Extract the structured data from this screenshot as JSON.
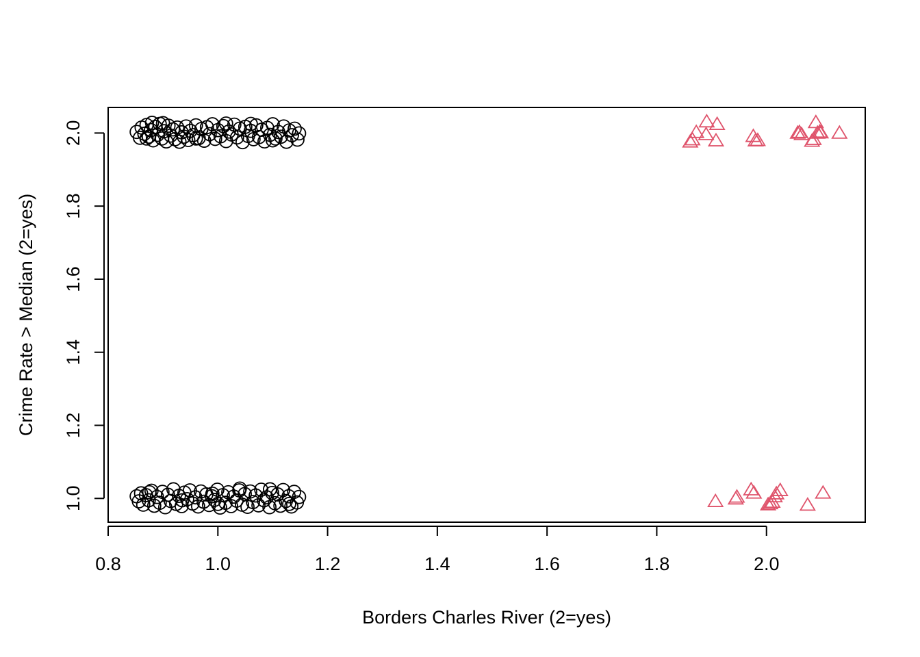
{
  "chart_data": {
    "type": "scatter",
    "title": "",
    "xlabel": "Borders Charles River (2=yes)",
    "ylabel": "Crime Rate > Median (2=yes)",
    "xlim": [
      0.8,
      2.18
    ],
    "ylim": [
      0.935,
      2.07
    ],
    "x_ticks": [
      "0.8",
      "1.0",
      "1.2",
      "1.4",
      "1.6",
      "1.8",
      "2.0"
    ],
    "y_ticks": [
      "1.0",
      "1.2",
      "1.4",
      "1.6",
      "1.8",
      "2.0"
    ],
    "grid": false,
    "legend": false,
    "colors": {
      "circle_series": "#000000",
      "triangle_series": "#DF536B"
    },
    "series": [
      {
        "marker": "circle",
        "color": "#000000",
        "points": [
          [
            0.852,
            2.003
          ],
          [
            0.858,
            1.987
          ],
          [
            0.861,
            2.015
          ],
          [
            0.866,
            1.998
          ],
          [
            0.87,
            2.022
          ],
          [
            0.874,
            1.99
          ],
          [
            0.878,
            2.008
          ],
          [
            0.882,
            1.98
          ],
          [
            0.886,
            2.017
          ],
          [
            0.89,
            1.995
          ],
          [
            0.894,
            2.025
          ],
          [
            0.898,
            1.985
          ],
          [
            0.902,
            2.005
          ],
          [
            0.906,
            1.977
          ],
          [
            0.91,
            2.02
          ],
          [
            0.914,
            1.993
          ],
          [
            0.918,
            2.01
          ],
          [
            0.922,
            1.983
          ],
          [
            0.926,
            2.015
          ],
          [
            0.93,
            1.976
          ],
          [
            0.934,
            2.002
          ],
          [
            0.938,
            1.99
          ],
          [
            0.942,
            2.018
          ],
          [
            0.946,
            1.981
          ],
          [
            0.95,
            2.006
          ],
          [
            0.955,
            1.994
          ],
          [
            0.96,
            2.021
          ],
          [
            0.965,
            1.986
          ],
          [
            0.97,
            2.011
          ],
          [
            0.975,
            1.979
          ],
          [
            0.98,
            2.016
          ],
          [
            0.985,
            1.997
          ],
          [
            0.99,
            2.024
          ],
          [
            0.995,
            1.984
          ],
          [
            1.0,
            2.008
          ],
          [
            1.005,
            1.991
          ],
          [
            1.01,
            2.019
          ],
          [
            1.015,
            1.978
          ],
          [
            1.02,
            2.004
          ],
          [
            1.025,
            1.996
          ],
          [
            1.03,
            2.023
          ],
          [
            1.035,
            1.988
          ],
          [
            1.04,
            2.012
          ],
          [
            1.045,
            1.975
          ],
          [
            1.05,
            2.017
          ],
          [
            1.055,
            1.992
          ],
          [
            1.06,
            2.006
          ],
          [
            1.065,
            1.983
          ],
          [
            1.07,
            2.021
          ],
          [
            1.075,
            1.989
          ],
          [
            1.08,
            2.009
          ],
          [
            1.085,
            1.977
          ],
          [
            1.09,
            2.014
          ],
          [
            1.095,
            1.995
          ],
          [
            1.1,
            2.024
          ],
          [
            1.105,
            1.985
          ],
          [
            1.11,
            2.003
          ],
          [
            1.115,
            1.99
          ],
          [
            1.12,
            2.018
          ],
          [
            1.125,
            1.976
          ],
          [
            1.13,
            2.007
          ],
          [
            1.135,
            1.994
          ],
          [
            1.14,
            2.012
          ],
          [
            1.145,
            1.982
          ],
          [
            1.148,
            1.999
          ],
          [
            0.88,
            2.028
          ],
          [
            0.9,
            2.027
          ],
          [
            0.96,
            1.985
          ],
          [
            1.015,
            2.026
          ],
          [
            1.06,
            2.025
          ],
          [
            1.1,
            1.98
          ],
          [
            0.87,
            1.985
          ],
          [
            0.852,
            1.006
          ],
          [
            0.856,
            0.992
          ],
          [
            0.86,
            1.014
          ],
          [
            0.864,
            0.983
          ],
          [
            0.869,
            1.009
          ],
          [
            0.874,
            0.995
          ],
          [
            0.879,
            1.021
          ],
          [
            0.884,
            0.98
          ],
          [
            0.889,
            1.004
          ],
          [
            0.894,
            0.988
          ],
          [
            0.899,
            1.018
          ],
          [
            0.904,
            0.976
          ],
          [
            0.909,
            1.01
          ],
          [
            0.914,
            0.993
          ],
          [
            0.919,
            1.025
          ],
          [
            0.924,
            0.985
          ],
          [
            0.929,
            1.007
          ],
          [
            0.934,
            0.979
          ],
          [
            0.939,
            1.016
          ],
          [
            0.944,
            0.998
          ],
          [
            0.949,
            1.022
          ],
          [
            0.954,
            0.986
          ],
          [
            0.959,
            1.003
          ],
          [
            0.964,
            0.978
          ],
          [
            0.969,
            1.019
          ],
          [
            0.974,
            0.991
          ],
          [
            0.979,
            1.011
          ],
          [
            0.984,
            0.982
          ],
          [
            0.989,
            1.006
          ],
          [
            0.994,
            0.996
          ],
          [
            0.999,
            1.024
          ],
          [
            1.004,
            0.975
          ],
          [
            1.009,
            1.009
          ],
          [
            1.014,
            0.988
          ],
          [
            1.019,
            1.017
          ],
          [
            1.024,
            0.979
          ],
          [
            1.029,
            1.005
          ],
          [
            1.034,
            0.994
          ],
          [
            1.039,
            1.022
          ],
          [
            1.044,
            0.983
          ],
          [
            1.049,
            1.012
          ],
          [
            1.054,
            0.977
          ],
          [
            1.059,
            1.019
          ],
          [
            1.064,
            0.99
          ],
          [
            1.069,
            1.008
          ],
          [
            1.074,
            0.981
          ],
          [
            1.079,
            1.024
          ],
          [
            1.084,
            0.995
          ],
          [
            1.089,
            1.003
          ],
          [
            1.094,
            0.976
          ],
          [
            1.099,
            1.015
          ],
          [
            1.104,
            0.987
          ],
          [
            1.109,
            1.011
          ],
          [
            1.114,
            0.98
          ],
          [
            1.119,
            1.023
          ],
          [
            1.124,
            0.993
          ],
          [
            1.129,
            1.006
          ],
          [
            1.134,
            0.978
          ],
          [
            1.139,
            1.018
          ],
          [
            1.144,
            0.989
          ],
          [
            1.148,
            1.004
          ],
          [
            0.875,
            1.017
          ],
          [
            0.935,
            0.995
          ],
          [
            0.99,
            1.013
          ],
          [
            1.04,
            1.027
          ],
          [
            1.095,
            1.025
          ],
          [
            1.13,
            0.985
          ],
          [
            1.0,
            0.985
          ]
        ]
      },
      {
        "marker": "triangle",
        "color": "#DF536B",
        "points": [
          [
            1.861,
            1.976
          ],
          [
            1.865,
            1.982
          ],
          [
            1.872,
            2.002
          ],
          [
            1.891,
            2.031
          ],
          [
            1.89,
            1.996
          ],
          [
            1.91,
            2.024
          ],
          [
            1.908,
            1.979
          ],
          [
            1.976,
            1.991
          ],
          [
            1.98,
            1.979
          ],
          [
            1.984,
            1.98
          ],
          [
            2.057,
            2.0
          ],
          [
            2.06,
            2.002
          ],
          [
            2.064,
            1.996
          ],
          [
            2.083,
            1.978
          ],
          [
            2.086,
            1.983
          ],
          [
            2.09,
            2.029
          ],
          [
            2.093,
            2.0
          ],
          [
            2.097,
            2.003
          ],
          [
            2.099,
            2.001
          ],
          [
            2.133,
            2.0
          ],
          [
            1.907,
            0.992
          ],
          [
            1.944,
            0.999
          ],
          [
            1.946,
            1.004
          ],
          [
            1.972,
            1.024
          ],
          [
            1.977,
            1.015
          ],
          [
            2.003,
            0.983
          ],
          [
            2.007,
            0.986
          ],
          [
            2.011,
            0.99
          ],
          [
            2.015,
            1.005
          ],
          [
            2.018,
            1.013
          ],
          [
            2.025,
            1.022
          ],
          [
            2.075,
            0.982
          ],
          [
            2.103,
            1.015
          ]
        ]
      }
    ]
  }
}
